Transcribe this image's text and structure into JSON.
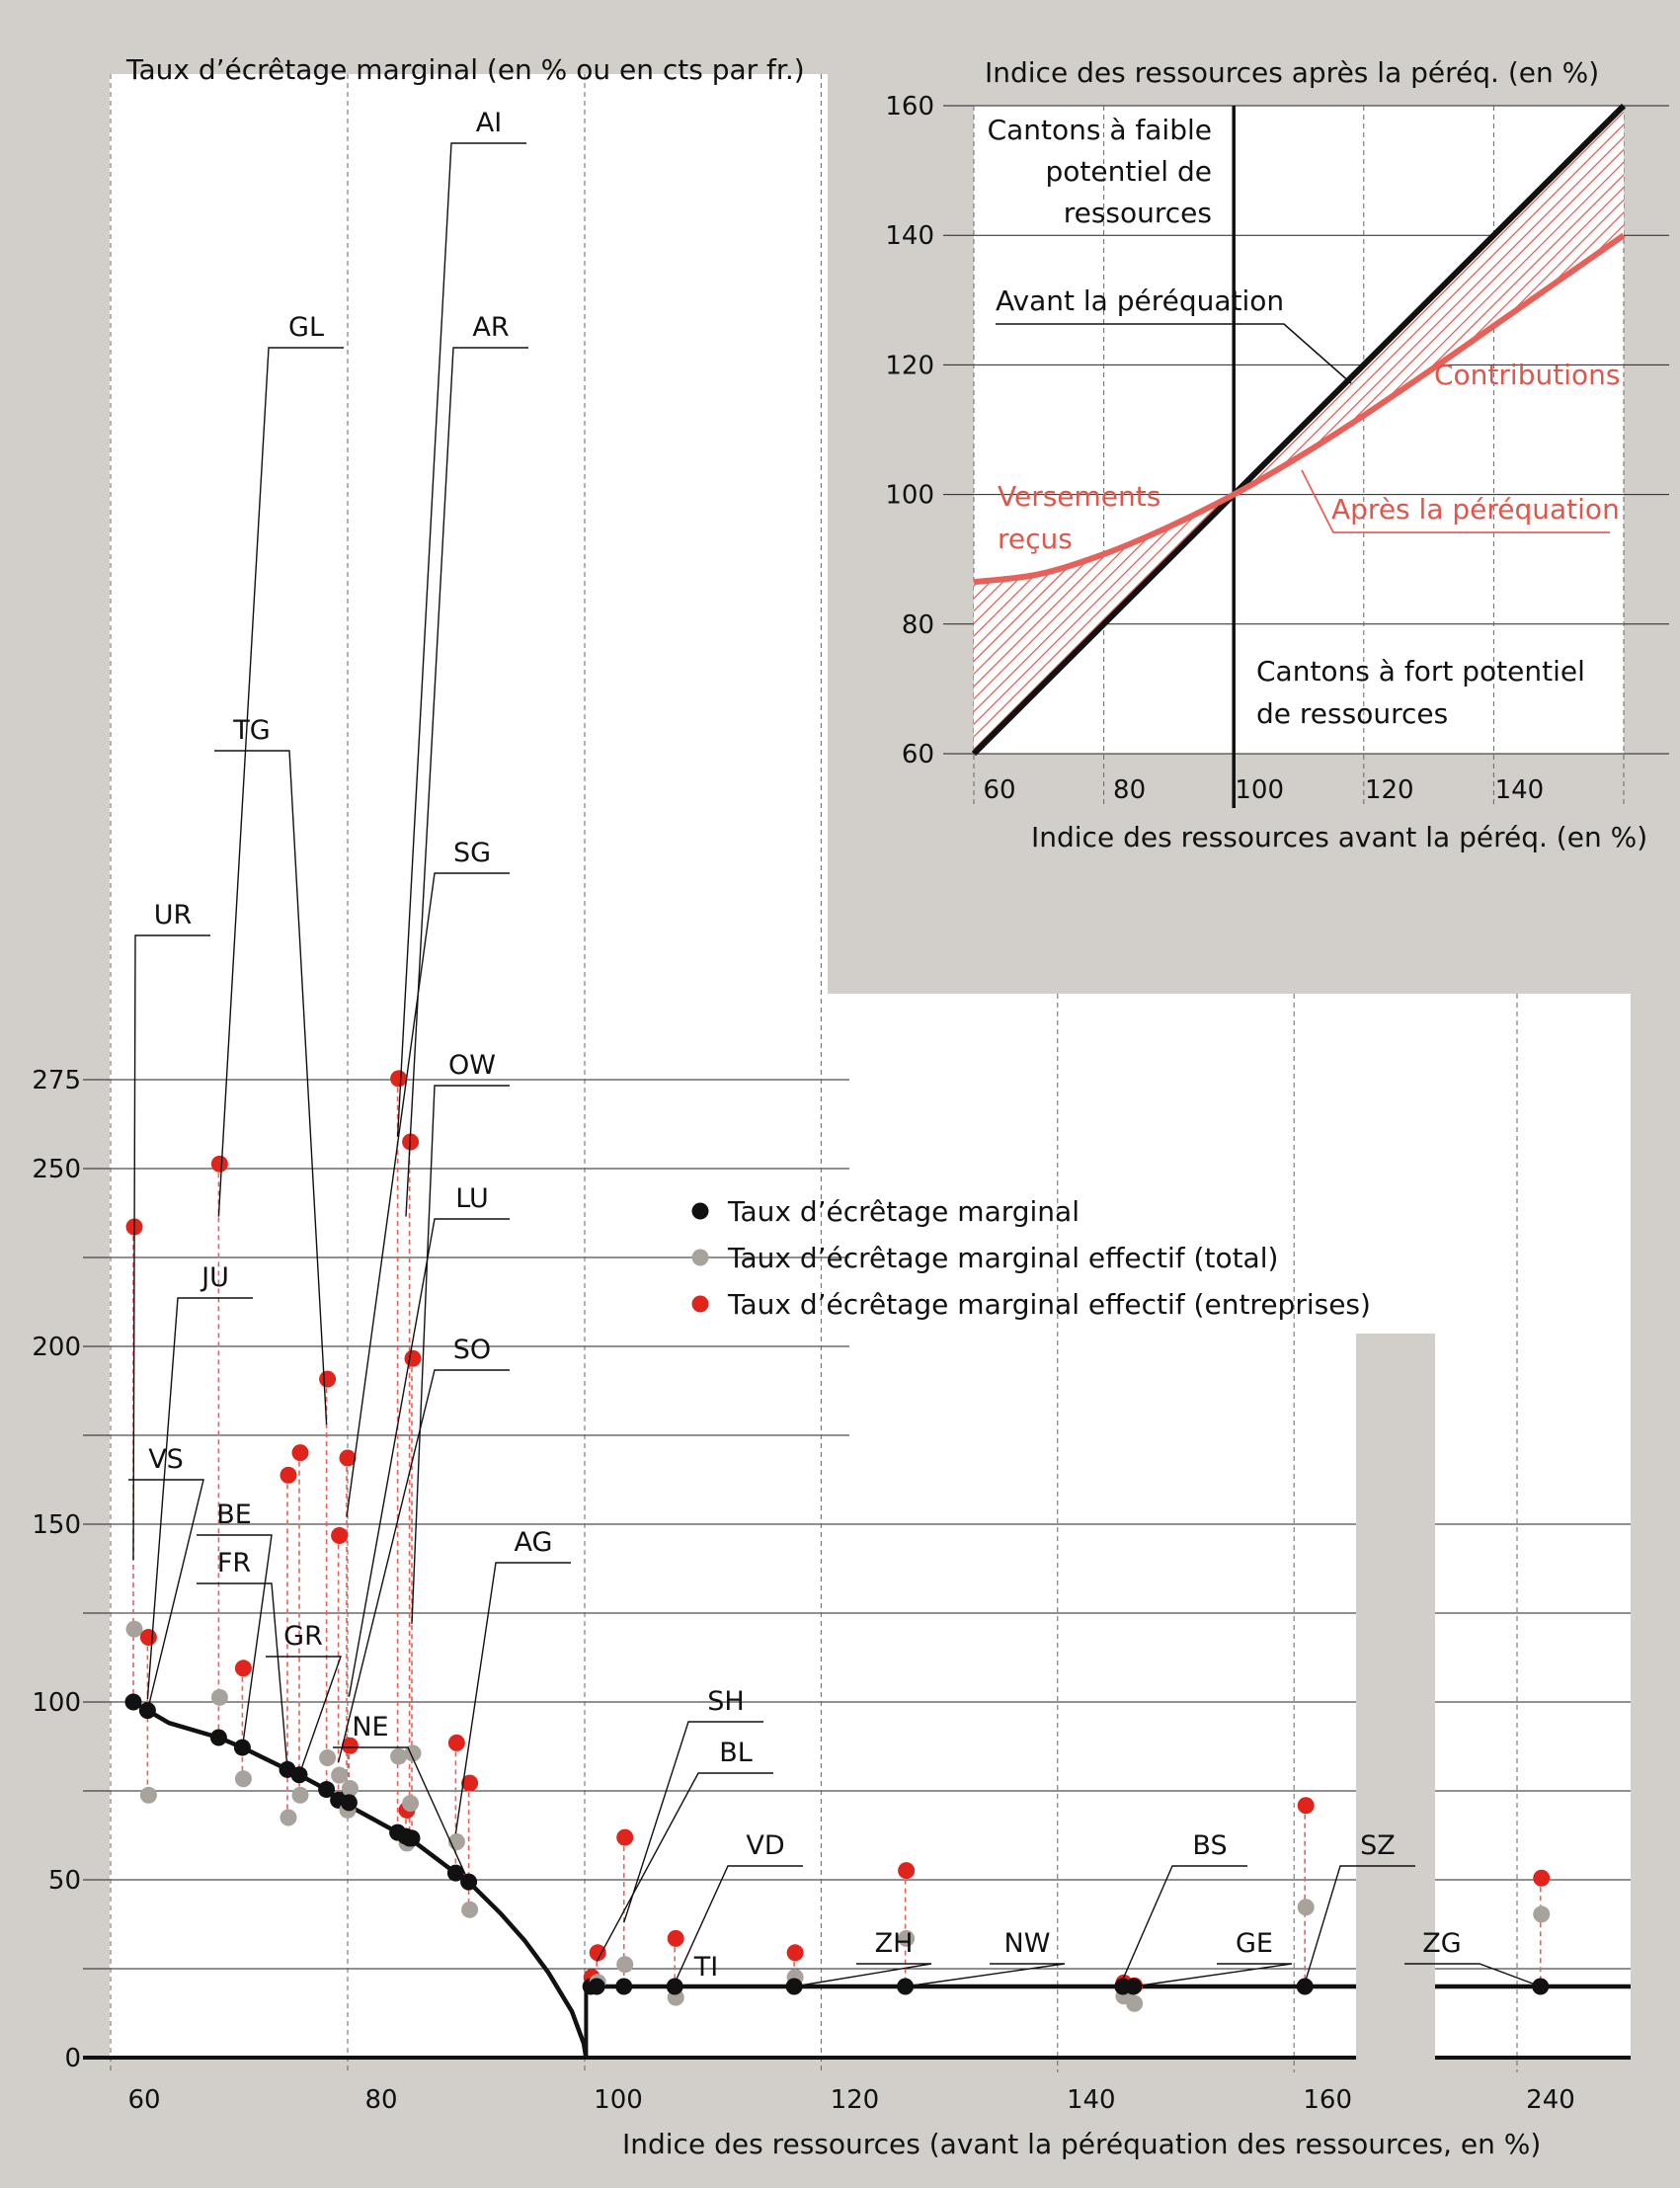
{
  "colors": {
    "background": "#d2cfca",
    "plot": "#ffffff",
    "theoretical": "#111111",
    "effective_total": "#a7a29c",
    "effective_business": "#e0231b",
    "after_equalization": "#e8605a"
  },
  "chart_data": [
    {
      "type": "scatter",
      "title": "Taux d’écrêtage marginal (en % ou en cts par fr.)",
      "xlabel": "Indice des ressources (avant la péréquation des ressources, en %)",
      "ylabel": "",
      "x_ticks": [
        "60",
        "80",
        "100",
        "120",
        "140",
        "160",
        "240"
      ],
      "y_ticks": [
        "0",
        "50",
        "100",
        "150",
        "200",
        "250",
        "275"
      ],
      "ylim": [
        0,
        275
      ],
      "x_axis_break": "between 160 and 240",
      "grid": true,
      "legend_position": "center-right",
      "legend": [
        "Taux d’écrêtage marginal",
        "Taux d’écrêtage marginal effectif (total)",
        "Taux d’écrêtage marginal effectif (entreprises)"
      ],
      "curve": {
        "name": "Taux d’écrêtage marginal",
        "points": [
          [
            61,
            100
          ],
          [
            62.2,
            97.6
          ],
          [
            64,
            94.1
          ],
          [
            68.2,
            90
          ],
          [
            70.2,
            87.2
          ],
          [
            74,
            81
          ],
          [
            75,
            79.5
          ],
          [
            77.3,
            75.4
          ],
          [
            78.3,
            72.4
          ],
          [
            83.3,
            63.3
          ],
          [
            84.3,
            61.7
          ],
          [
            88.2,
            51.9
          ],
          [
            89.3,
            49.4
          ],
          [
            92,
            40.5
          ],
          [
            94,
            33
          ],
          [
            96,
            24
          ],
          [
            98,
            13
          ],
          [
            99,
            4
          ],
          [
            99.2,
            0
          ]
        ],
        "flat_from_x": 99.2,
        "flat_value": 20
      },
      "cantons": [
        {
          "code": "UR",
          "x": 61,
          "marginal": 100,
          "total": 120.5,
          "business": 233.6
        },
        {
          "code": "VS",
          "x": 62.2,
          "marginal": 97.6,
          "total": 73.8,
          "business": 118.2
        },
        {
          "code": "JU",
          "x": 68.2,
          "marginal": 90,
          "total": 101.3,
          "business": 251.3
        },
        {
          "code": "BE",
          "x": 70.2,
          "marginal": 87.2,
          "total": 78.4,
          "business": 109.5
        },
        {
          "code": "FR",
          "x": 74,
          "marginal": 81,
          "total": 67.5,
          "business": 163.8
        },
        {
          "code": "GR",
          "x": 75,
          "marginal": 79.5,
          "total": 73.8,
          "business": 170.1
        },
        {
          "code": "TG",
          "x": 77.3,
          "marginal": 75.4,
          "total": 84.3,
          "business": 190.8
        },
        {
          "code": "SO",
          "x": 78.3,
          "marginal": 72.4,
          "total": 79.4,
          "business": 146.8
        },
        {
          "code": "SG",
          "x": 79,
          "marginal": 72.9,
          "total": 69.6,
          "business": 168.6
        },
        {
          "code": "LU",
          "x": 79.2,
          "marginal": 71.7,
          "total": 75.7,
          "business": 87.7
        },
        {
          "code": "AI",
          "x": 83.3,
          "marginal": 63.3,
          "total": 84.7,
          "business": 275.3
        },
        {
          "code": "AR",
          "x": 84,
          "marginal": 62.2,
          "total": 60.3,
          "business": 69.6
        },
        {
          "code": "GL",
          "x": 84.3,
          "marginal": 61.7,
          "total": 71.5,
          "business": 257.5
        },
        {
          "code": "OW",
          "x": 84.5,
          "marginal": 61.7,
          "total": 85.6,
          "business": 196.6
        },
        {
          "code": "AG",
          "x": 88.2,
          "marginal": 51.9,
          "total": 60.7,
          "business": 88.5
        },
        {
          "code": "NE",
          "x": 89.3,
          "marginal": 49.4,
          "total": 41.6,
          "business": 77.2
        },
        {
          "code": "TI",
          "x": 99.6,
          "marginal": 20,
          "total": 20.2,
          "business": 22.6
        },
        {
          "code": "VD",
          "x": 100.1,
          "marginal": 20,
          "total": 21.2,
          "business": 29.5
        },
        {
          "code": "SH",
          "x": 102.4,
          "marginal": 20,
          "total": 26.2,
          "business": 61.9
        },
        {
          "code": "BL",
          "x": 106.7,
          "marginal": 20,
          "total": 16.9,
          "business": 33.5
        },
        {
          "code": "ZH",
          "x": 116.8,
          "marginal": 20,
          "total": 22.6,
          "business": 29.5
        },
        {
          "code": "NW",
          "x": 126.2,
          "marginal": 20,
          "total": 33.5,
          "business": 52.6
        },
        {
          "code": "BS",
          "x": 144.6,
          "marginal": 20,
          "total": 17.3,
          "business": 21
        },
        {
          "code": "GE",
          "x": 145.5,
          "marginal": 20,
          "total": 15.2,
          "business": 20.2
        },
        {
          "code": "SZ",
          "x": 160,
          "marginal": 20,
          "total": 42.3,
          "business": 70.9
        },
        {
          "code": "ZG",
          "x": 241.5,
          "marginal": 20,
          "total": 40.3,
          "business": 50.5
        }
      ]
    },
    {
      "type": "line",
      "title": "Indice des ressources après la péréq. (en %)",
      "xlabel": "Indice des ressources avant la péréq. (en %)",
      "ylabel": "",
      "x_ticks": [
        "60",
        "80",
        "100",
        "120",
        "140"
      ],
      "y_ticks": [
        "60",
        "80",
        "100",
        "120",
        "140",
        "160"
      ],
      "xlim": [
        60,
        160
      ],
      "ylim": [
        60,
        160
      ],
      "grid": true,
      "threshold_x": 100,
      "series": [
        {
          "name": "Avant la péréquation",
          "x": [
            60,
            160
          ],
          "y": [
            60,
            160
          ]
        },
        {
          "name": "Après la péréquation",
          "x": [
            60,
            70,
            80,
            90,
            100,
            110,
            120,
            130,
            140,
            150,
            160
          ],
          "y": [
            86.5,
            87.7,
            90.8,
            95,
            100,
            105.8,
            112.2,
            119,
            126,
            133,
            140
          ]
        }
      ],
      "annotations": {
        "low_potential": [
          "Cantons à faible",
          "potentiel de",
          "ressources"
        ],
        "high_potential": [
          "Cantons à fort potentiel",
          "de ressources"
        ],
        "before": "Avant la péréquation",
        "after": "Après la péréquation",
        "contributions": "Contributions",
        "received": [
          "Versements",
          "reçus"
        ]
      }
    }
  ]
}
